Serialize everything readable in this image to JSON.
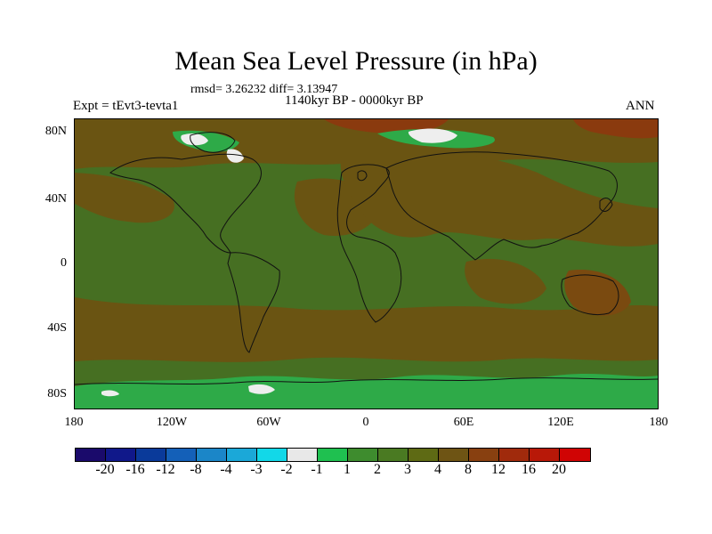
{
  "title": "Mean Sea Level Pressure (in hPa)",
  "stats": "rmsd= 3.26232 diff= 3.13947",
  "subtitle": "1140kyr BP - 0000kyr BP",
  "expt": "Expt = tEvt3-tevta1",
  "season": "ANN",
  "lat_labels": [
    "80N",
    "40N",
    "0",
    "40S",
    "80S"
  ],
  "lon_labels": [
    "180",
    "120W",
    "60W",
    "0",
    "60E",
    "120E",
    "180"
  ],
  "colorbar": {
    "colors": [
      "#1a0a6b",
      "#10188a",
      "#0a3a9a",
      "#1460b8",
      "#1b86c8",
      "#1ba8d8",
      "#12d8e8",
      "#e8e8e8",
      "#1fc050",
      "#3e8c2e",
      "#4a7a22",
      "#5e6a14",
      "#6e5414",
      "#884010",
      "#a02a0c",
      "#b81808",
      "#d00404"
    ],
    "labels": [
      "-20",
      "-16",
      "-12",
      "-8",
      "-4",
      "-3",
      "-2",
      "-1",
      "1",
      "2",
      "3",
      "4",
      "8",
      "12",
      "16",
      "20"
    ]
  },
  "map_colors": {
    "base": "#466f22",
    "brown": "#6a5412",
    "darkbrown": "#7a4a10",
    "red": "#8a3a0e",
    "light_green": "#2eaa48",
    "white": "#eeeeee",
    "coast": "#111111"
  }
}
